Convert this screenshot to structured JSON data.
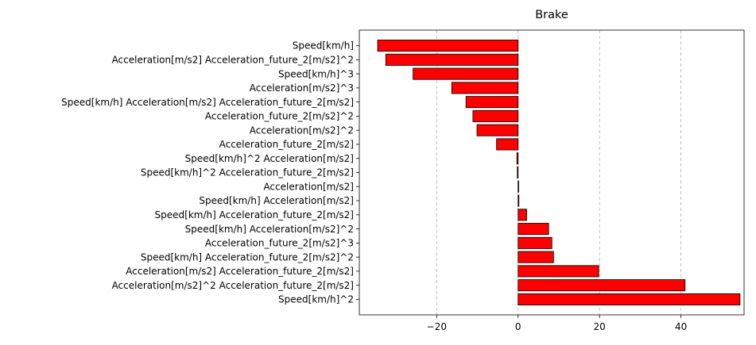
{
  "chart_data": {
    "type": "bar",
    "orientation": "horizontal",
    "title": "Brake",
    "xlabel": "",
    "ylabel": "",
    "xlim": [
      -39,
      55.5
    ],
    "xticks": [
      -20,
      0,
      20,
      40
    ],
    "xtick_labels": [
      "−20",
      "0",
      "20",
      "40"
    ],
    "grid": {
      "x": true,
      "y": false,
      "style": "dashed"
    },
    "bar_color": "#ff0000",
    "edge_color": "#000000",
    "grid_color": "#b0b0b0",
    "categories": [
      "Speed[km/h]",
      "Acceleration[m/s2] Acceleration_future_2[m/s2]^2",
      "Speed[km/h]^3",
      "Acceleration[m/s2]^3",
      "Speed[km/h] Acceleration[m/s2] Acceleration_future_2[m/s2]",
      "Acceleration_future_2[m/s2]^2",
      "Acceleration[m/s2]^2",
      "Acceleration_future_2[m/s2]",
      "Speed[km/h]^2 Acceleration[m/s2]",
      "Speed[km/h]^2 Acceleration_future_2[m/s2]",
      "Acceleration[m/s2]",
      "Speed[km/h] Acceleration[m/s2]",
      "Speed[km/h] Acceleration_future_2[m/s2]",
      "Speed[km/h] Acceleration[m/s2]^2",
      "Acceleration_future_2[m/s2]^3",
      "Speed[km/h] Acceleration_future_2[m/s2]^2",
      "Acceleration[m/s2] Acceleration_future_2[m/s2]",
      "Acceleration[m/s2]^2 Acceleration_future_2[m/s2]",
      "Speed[km/h]^2"
    ],
    "values": [
      -34.5,
      -32.5,
      -25.8,
      -16.3,
      -12.8,
      -11.1,
      -10.1,
      -5.3,
      -0.3,
      -0.2,
      0.15,
      0.2,
      2.1,
      7.5,
      8.3,
      8.7,
      19.8,
      41.0,
      54.5
    ]
  }
}
